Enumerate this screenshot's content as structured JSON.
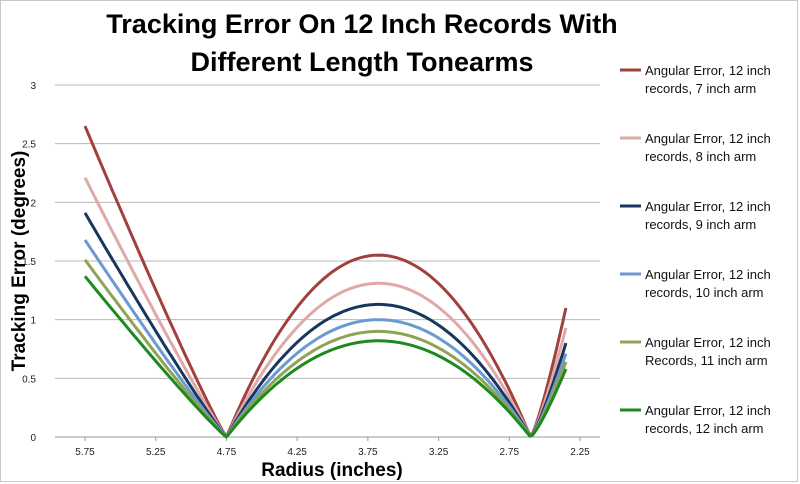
{
  "chart_data": {
    "type": "line",
    "title_lines": [
      "Tracking Error On 12 Inch Records With",
      "Different Length Tonearms"
    ],
    "xlabel": "Radius (inches)",
    "ylabel": "Tracking Error (degrees)",
    "x_reversed": true,
    "xlim": [
      2.25,
      5.9
    ],
    "ylim": [
      0,
      3
    ],
    "x_ticks": [
      "5.75",
      "5.25",
      "4.75",
      "4.25",
      "3.75",
      "3.25",
      "2.75",
      "2.25"
    ],
    "x_tick_values": [
      5.75,
      5.25,
      4.75,
      4.25,
      3.75,
      3.25,
      2.75,
      2.25
    ],
    "y_ticks": [
      "0",
      "0.5",
      "1",
      "1.5",
      "2",
      "2.5",
      "3"
    ],
    "y_tick_values": [
      0,
      0.5,
      1,
      1.5,
      2,
      2.5,
      3
    ],
    "grid": "horizontal",
    "legend_position": "right",
    "null_points": [
      4.75,
      2.6
    ],
    "series": [
      {
        "name": "Angular Error, 12 inch records, 7 inch arm",
        "legend_lines": [
          "Angular Error, 12 inch",
          "records, 7 inch arm"
        ],
        "color": "#A0413F",
        "start": [
          5.75,
          2.65
        ],
        "peak": 1.55,
        "end": [
          2.35,
          1.1
        ]
      },
      {
        "name": "Angular Error, 12 inch records, 8 inch arm",
        "legend_lines": [
          "Angular Error, 12 inch",
          "records, 8 inch arm"
        ],
        "color": "#E0A9A8",
        "start": [
          5.75,
          2.21
        ],
        "peak": 1.31,
        "end": [
          2.35,
          0.93
        ]
      },
      {
        "name": "Angular Error, 12 inch records, 9 inch arm",
        "legend_lines": [
          "Angular Error, 12 inch",
          "records, 9 inch arm"
        ],
        "color": "#17375E",
        "start": [
          5.75,
          1.91
        ],
        "peak": 1.13,
        "end": [
          2.35,
          0.8
        ]
      },
      {
        "name": "Angular Error, 12 inch records, 10 inch arm",
        "legend_lines": [
          "Angular Error, 12 inch",
          "records, 10 inch arm"
        ],
        "color": "#6A9AD0",
        "start": [
          5.75,
          1.68
        ],
        "peak": 1.0,
        "end": [
          2.35,
          0.71
        ]
      },
      {
        "name": "Angular Error, 12 inch Records, 11 inch arm",
        "legend_lines": [
          "Angular Error, 12 inch",
          "Records, 11 inch arm"
        ],
        "color": "#8FA354",
        "start": [
          5.75,
          1.51
        ],
        "peak": 0.9,
        "end": [
          2.35,
          0.64
        ]
      },
      {
        "name": "Angular Error, 12 inch records, 12 inch arm",
        "legend_lines": [
          "Angular Error, 12 inch",
          "records, 12 inch arm"
        ],
        "color": "#1E8A1E",
        "start": [
          5.75,
          1.37
        ],
        "peak": 0.82,
        "end": [
          2.35,
          0.58
        ]
      }
    ]
  }
}
